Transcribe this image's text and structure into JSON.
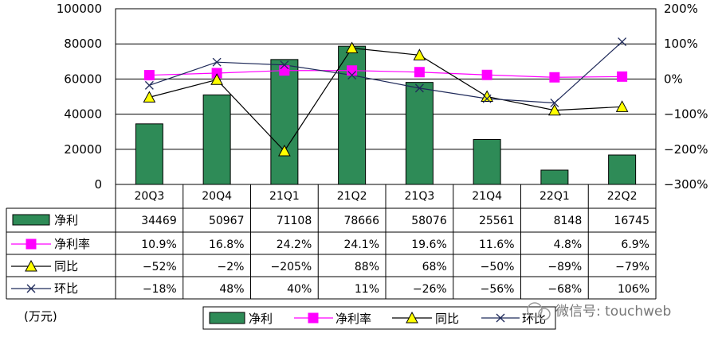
{
  "chart_data": {
    "type": "bar",
    "categories": [
      "20Q3",
      "20Q4",
      "21Q1",
      "21Q2",
      "21Q3",
      "21Q4",
      "22Q1",
      "22Q2"
    ],
    "left_axis": {
      "min": 0,
      "max": 100000,
      "ticks": [
        "100000",
        "80000",
        "60000",
        "40000",
        "20000",
        "0"
      ]
    },
    "right_axis": {
      "min": -300,
      "max": 200,
      "unit": "%",
      "ticks": [
        "200%",
        "100%",
        "0%",
        "-100%",
        "-200%",
        "-300%"
      ]
    },
    "series": [
      {
        "name": "净利",
        "kind": "bar",
        "axis": "left",
        "values": [
          34469,
          50967,
          71108,
          78666,
          58076,
          25561,
          8148,
          16745
        ],
        "labels": [
          "34469",
          "50967",
          "71108",
          "78666",
          "58076",
          "25561",
          "8148",
          "16745"
        ]
      },
      {
        "name": "净利率",
        "kind": "line",
        "axis": "right",
        "values": [
          10.9,
          16.8,
          24.2,
          24.1,
          19.6,
          11.6,
          4.8,
          6.9
        ],
        "labels": [
          "10.9%",
          "16.8%",
          "24.2%",
          "24.1%",
          "19.6%",
          "11.6%",
          "4.8%",
          "6.9%"
        ]
      },
      {
        "name": "同比",
        "kind": "line",
        "axis": "right",
        "values": [
          -52,
          -2,
          -205,
          88,
          68,
          -50,
          -89,
          -79
        ],
        "labels": [
          "-52%",
          "-2%",
          "-205%",
          "88%",
          "68%",
          "-50%",
          "-89%",
          "-79%"
        ]
      },
      {
        "name": "环比",
        "kind": "line",
        "axis": "right",
        "values": [
          -18,
          48,
          40,
          11,
          -26,
          -56,
          -68,
          106
        ],
        "labels": [
          "-18%",
          "48%",
          "40%",
          "11%",
          "-26%",
          "-56%",
          "-68%",
          "106%"
        ]
      }
    ],
    "unit_label": "(万元)",
    "legend": [
      "净利",
      "净利率",
      "同比",
      "环比"
    ],
    "colors": {
      "bar": "#2e8b57",
      "bar_stroke": "#000000",
      "net_margin": "#ff00ff",
      "yoy_marker": "#ffff00",
      "qoq": "#1f2a5a",
      "line": "#000000"
    }
  },
  "watermark": "微信号: touchweb"
}
